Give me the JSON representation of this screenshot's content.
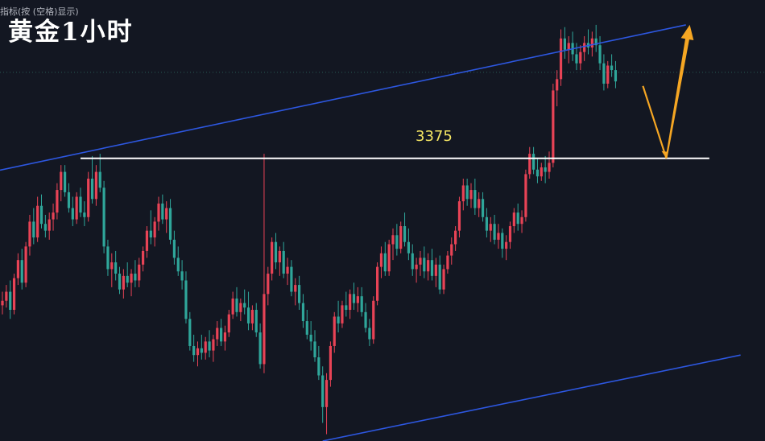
{
  "header": {
    "indicator_note": "指标(按 (空格)显示)",
    "title": "黄金1小时"
  },
  "colors": {
    "background": "#131722",
    "bull": "#e84356",
    "bear": "#2fa69a",
    "channel": "#2d57e0",
    "level_line": "#ffffff",
    "projection": "#f5a623",
    "level_label": "#f5e663"
  },
  "chart_data": {
    "type": "candlestick",
    "symbol": "黄金",
    "timeframe": "1小时",
    "price_range": [
      3250,
      3445
    ],
    "horizontal_level": {
      "value": 3375,
      "label": "3375"
    },
    "channel": {
      "upper": {
        "from": {
          "bar": 0,
          "price": 3370
        },
        "to": {
          "bar": 175,
          "price": 3434
        }
      },
      "lower": {
        "from": {
          "bar": 82,
          "price": 3250
        },
        "to": {
          "bar": 189,
          "price": 3288
        }
      }
    },
    "projection": {
      "path": [
        {
          "bar": 164,
          "price": 3407
        },
        {
          "bar": 170,
          "price": 3375
        },
        {
          "bar": 176,
          "price": 3434
        }
      ],
      "direction": "up"
    },
    "candles_ohlc": [
      [
        3310,
        3316,
        3306,
        3312
      ],
      [
        3312,
        3319,
        3309,
        3316
      ],
      [
        3316,
        3321,
        3304,
        3308
      ],
      [
        3308,
        3324,
        3306,
        3322
      ],
      [
        3322,
        3333,
        3319,
        3330
      ],
      [
        3330,
        3335,
        3317,
        3320
      ],
      [
        3320,
        3338,
        3318,
        3336
      ],
      [
        3336,
        3350,
        3332,
        3347
      ],
      [
        3347,
        3353,
        3337,
        3340
      ],
      [
        3340,
        3358,
        3338,
        3354
      ],
      [
        3354,
        3359,
        3344,
        3346
      ],
      [
        3346,
        3350,
        3340,
        3343
      ],
      [
        3343,
        3351,
        3339,
        3348
      ],
      [
        3348,
        3355,
        3343,
        3351
      ],
      [
        3351,
        3364,
        3348,
        3361
      ],
      [
        3361,
        3372,
        3356,
        3369
      ],
      [
        3369,
        3372,
        3358,
        3360
      ],
      [
        3360,
        3364,
        3351,
        3353
      ],
      [
        3353,
        3358,
        3345,
        3348
      ],
      [
        3348,
        3360,
        3346,
        3358
      ],
      [
        3358,
        3362,
        3349,
        3351
      ],
      [
        3351,
        3356,
        3345,
        3349
      ],
      [
        3349,
        3369,
        3347,
        3366
      ],
      [
        3366,
        3376,
        3355,
        3357
      ],
      [
        3357,
        3372,
        3354,
        3369
      ],
      [
        3369,
        3377,
        3360,
        3362
      ],
      [
        3362,
        3365,
        3333,
        3336
      ],
      [
        3336,
        3339,
        3323,
        3326
      ],
      [
        3326,
        3333,
        3318,
        3329
      ],
      [
        3329,
        3334,
        3321,
        3324
      ],
      [
        3324,
        3327,
        3315,
        3317
      ],
      [
        3317,
        3326,
        3313,
        3323
      ],
      [
        3323,
        3329,
        3318,
        3320
      ],
      [
        3320,
        3326,
        3314,
        3324
      ],
      [
        3324,
        3330,
        3318,
        3321
      ],
      [
        3321,
        3331,
        3318,
        3328
      ],
      [
        3328,
        3336,
        3325,
        3334
      ],
      [
        3334,
        3345,
        3331,
        3343
      ],
      [
        3343,
        3352,
        3337,
        3340
      ],
      [
        3340,
        3349,
        3336,
        3347
      ],
      [
        3347,
        3358,
        3343,
        3355
      ],
      [
        3355,
        3359,
        3346,
        3348
      ],
      [
        3348,
        3356,
        3342,
        3353
      ],
      [
        3353,
        3357,
        3337,
        3339
      ],
      [
        3339,
        3343,
        3328,
        3331
      ],
      [
        3331,
        3336,
        3323,
        3325
      ],
      [
        3325,
        3330,
        3317,
        3321
      ],
      [
        3321,
        3325,
        3302,
        3304
      ],
      [
        3304,
        3307,
        3290,
        3292
      ],
      [
        3292,
        3297,
        3285,
        3288
      ],
      [
        3288,
        3294,
        3283,
        3291
      ],
      [
        3291,
        3297,
        3286,
        3289
      ],
      [
        3289,
        3296,
        3286,
        3294
      ],
      [
        3294,
        3299,
        3287,
        3290
      ],
      [
        3290,
        3297,
        3285,
        3295
      ],
      [
        3295,
        3303,
        3292,
        3300
      ],
      [
        3300,
        3304,
        3292,
        3294
      ],
      [
        3294,
        3301,
        3290,
        3298
      ],
      [
        3298,
        3308,
        3296,
        3306
      ],
      [
        3306,
        3316,
        3304,
        3313
      ],
      [
        3313,
        3318,
        3305,
        3307
      ],
      [
        3307,
        3313,
        3303,
        3311
      ],
      [
        3311,
        3317,
        3306,
        3309
      ],
      [
        3309,
        3316,
        3299,
        3302
      ],
      [
        3302,
        3310,
        3299,
        3308
      ],
      [
        3308,
        3311,
        3296,
        3298
      ],
      [
        3298,
        3302,
        3282,
        3284
      ],
      [
        3284,
        3377,
        3280,
        3315
      ],
      [
        3315,
        3327,
        3310,
        3324
      ],
      [
        3324,
        3340,
        3321,
        3338
      ],
      [
        3338,
        3342,
        3326,
        3329
      ],
      [
        3329,
        3336,
        3323,
        3334
      ],
      [
        3334,
        3338,
        3322,
        3324
      ],
      [
        3324,
        3331,
        3319,
        3327
      ],
      [
        3327,
        3330,
        3314,
        3316
      ],
      [
        3316,
        3322,
        3310,
        3319
      ],
      [
        3319,
        3323,
        3308,
        3311
      ],
      [
        3311,
        3315,
        3300,
        3303
      ],
      [
        3303,
        3308,
        3295,
        3297
      ],
      [
        3297,
        3303,
        3290,
        3294
      ],
      [
        3294,
        3299,
        3285,
        3287
      ],
      [
        3287,
        3292,
        3277,
        3279
      ],
      [
        3279,
        3283,
        3258,
        3265
      ],
      [
        3265,
        3280,
        3253,
        3277
      ],
      [
        3277,
        3294,
        3274,
        3292
      ],
      [
        3292,
        3307,
        3289,
        3305
      ],
      [
        3305,
        3312,
        3298,
        3302
      ],
      [
        3302,
        3312,
        3300,
        3310
      ],
      [
        3310,
        3316,
        3305,
        3308
      ],
      [
        3308,
        3317,
        3304,
        3315
      ],
      [
        3315,
        3320,
        3308,
        3311
      ],
      [
        3311,
        3318,
        3307,
        3314
      ],
      [
        3314,
        3318,
        3305,
        3307
      ],
      [
        3307,
        3311,
        3298,
        3300
      ],
      [
        3300,
        3304,
        3292,
        3295
      ],
      [
        3295,
        3314,
        3293,
        3312
      ],
      [
        3312,
        3329,
        3310,
        3327
      ],
      [
        3327,
        3336,
        3322,
        3333
      ],
      [
        3333,
        3338,
        3323,
        3325
      ],
      [
        3325,
        3339,
        3323,
        3337
      ],
      [
        3337,
        3344,
        3330,
        3341
      ],
      [
        3341,
        3346,
        3332,
        3335
      ],
      [
        3335,
        3347,
        3333,
        3345
      ],
      [
        3345,
        3351,
        3336,
        3338
      ],
      [
        3338,
        3344,
        3330,
        3333
      ],
      [
        3333,
        3337,
        3323,
        3326
      ],
      [
        3326,
        3331,
        3320,
        3328
      ],
      [
        3328,
        3334,
        3323,
        3331
      ],
      [
        3331,
        3336,
        3322,
        3325
      ],
      [
        3325,
        3333,
        3321,
        3330
      ],
      [
        3330,
        3335,
        3321,
        3323
      ],
      [
        3323,
        3331,
        3318,
        3328
      ],
      [
        3328,
        3332,
        3315,
        3317
      ],
      [
        3317,
        3328,
        3315,
        3326
      ],
      [
        3326,
        3334,
        3324,
        3332
      ],
      [
        3332,
        3340,
        3328,
        3337
      ],
      [
        3337,
        3345,
        3334,
        3343
      ],
      [
        3343,
        3358,
        3340,
        3356
      ],
      [
        3356,
        3366,
        3352,
        3363
      ],
      [
        3363,
        3366,
        3354,
        3357
      ],
      [
        3357,
        3364,
        3353,
        3361
      ],
      [
        3361,
        3366,
        3350,
        3353
      ],
      [
        3353,
        3360,
        3349,
        3357
      ],
      [
        3357,
        3360,
        3347,
        3349
      ],
      [
        3349,
        3353,
        3340,
        3343
      ],
      [
        3343,
        3349,
        3338,
        3346
      ],
      [
        3346,
        3350,
        3337,
        3339
      ],
      [
        3339,
        3346,
        3335,
        3342
      ],
      [
        3342,
        3344,
        3331,
        3335
      ],
      [
        3335,
        3341,
        3330,
        3338
      ],
      [
        3338,
        3347,
        3335,
        3345
      ],
      [
        3345,
        3353,
        3342,
        3351
      ],
      [
        3351,
        3355,
        3343,
        3346
      ],
      [
        3346,
        3352,
        3342,
        3349
      ],
      [
        3349,
        3370,
        3347,
        3368
      ],
      [
        3368,
        3380,
        3366,
        3377
      ],
      [
        3377,
        3380,
        3368,
        3370
      ],
      [
        3370,
        3375,
        3364,
        3367
      ],
      [
        3367,
        3373,
        3365,
        3371
      ],
      [
        3371,
        3376,
        3364,
        3369
      ],
      [
        3369,
        3378,
        3366,
        3373
      ],
      [
        3373,
        3408,
        3371,
        3405
      ],
      [
        3405,
        3414,
        3398,
        3410
      ],
      [
        3410,
        3432,
        3407,
        3428
      ],
      [
        3428,
        3433,
        3419,
        3423
      ],
      [
        3423,
        3429,
        3417,
        3426
      ],
      [
        3426,
        3431,
        3418,
        3421
      ],
      [
        3421,
        3426,
        3414,
        3417
      ],
      [
        3417,
        3425,
        3414,
        3422
      ],
      [
        3422,
        3429,
        3418,
        3426
      ],
      [
        3426,
        3432,
        3421,
        3424
      ],
      [
        3424,
        3431,
        3420,
        3428
      ],
      [
        3428,
        3434,
        3422,
        3425
      ],
      [
        3425,
        3429,
        3414,
        3417
      ],
      [
        3417,
        3421,
        3405,
        3408
      ],
      [
        3408,
        3418,
        3406,
        3416
      ],
      [
        3416,
        3421,
        3411,
        3414
      ],
      [
        3414,
        3418,
        3406,
        3409
      ]
    ]
  }
}
